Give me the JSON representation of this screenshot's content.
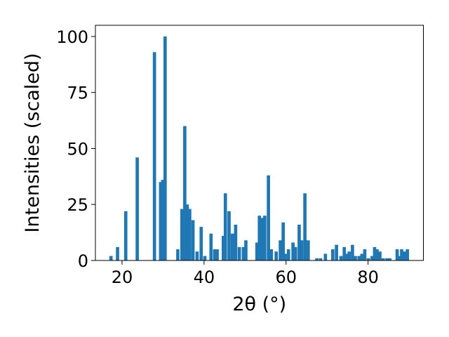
{
  "chart_data": {
    "type": "bar",
    "xlabel": "2θ (°)",
    "ylabel": "Intensities (scaled)",
    "xlim": [
      13.5,
      93.5
    ],
    "ylim": [
      0,
      105
    ],
    "bar_width": 0.8,
    "color": "#1f77b4",
    "grid": false,
    "xticks": [
      20,
      40,
      60,
      80
    ],
    "yticks": [
      0,
      25,
      50,
      75,
      100
    ],
    "x": [
      17.3,
      18.9,
      20.9,
      23.7,
      27.9,
      29.4,
      29.9,
      30.5,
      33.6,
      34.6,
      35.3,
      35.9,
      36.5,
      37.3,
      38.3,
      39.3,
      40.2,
      41.7,
      42.6,
      43.2,
      44.7,
      45.2,
      46.1,
      46.9,
      47.7,
      48.6,
      49.6,
      50.2,
      52.9,
      53.5,
      54.2,
      54.8,
      55.7,
      56.4,
      57.6,
      58.6,
      59.3,
      59.8,
      60.6,
      61.7,
      62.3,
      63.2,
      63.8,
      64.6,
      65.4,
      67.5,
      68.4,
      69.6,
      71.4,
      72.3,
      73.4,
      74.2,
      74.8,
      75.4,
      76.2,
      76.9,
      77.8,
      78.5,
      79.2,
      80.1,
      81.0,
      81.6,
      82.2,
      82.9,
      83.7,
      84.6,
      85.3,
      87.1,
      87.6,
      88.2,
      88.9,
      89.6
    ],
    "values": [
      2,
      6,
      22,
      46,
      93,
      35,
      36,
      100,
      5,
      23,
      60,
      25,
      23,
      18,
      4,
      15,
      2,
      12,
      5,
      5,
      11,
      30,
      22,
      12,
      16,
      6,
      6,
      9,
      8,
      20,
      19,
      20,
      38,
      5,
      4,
      9,
      17,
      3,
      5,
      8,
      6,
      16,
      9,
      30,
      9,
      1,
      1,
      3,
      5,
      7,
      2,
      6,
      3,
      4,
      7,
      2,
      2,
      3,
      5,
      1,
      2,
      6,
      5,
      4,
      1,
      1,
      1,
      5,
      2,
      5,
      4,
      5
    ]
  }
}
